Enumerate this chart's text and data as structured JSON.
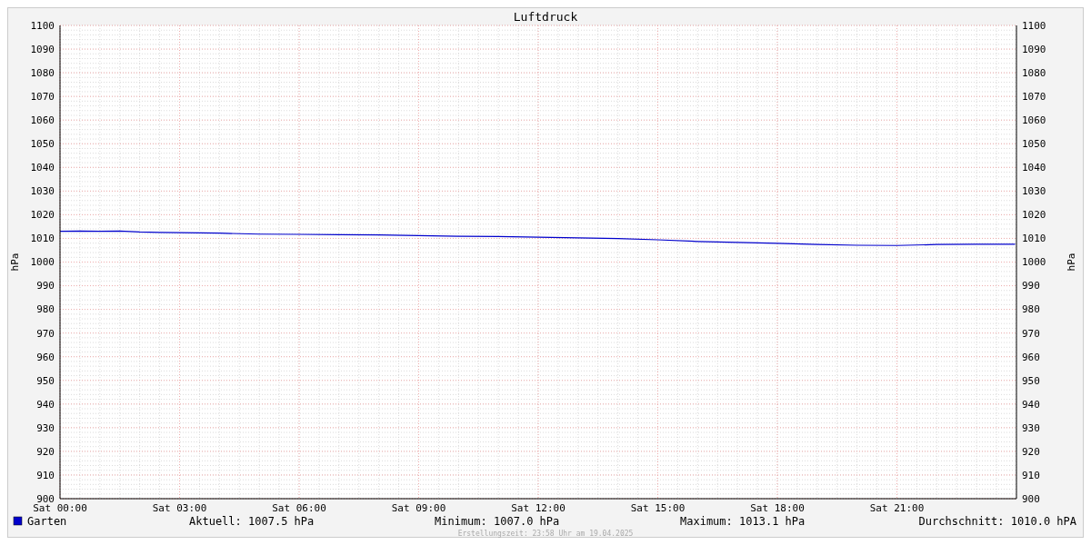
{
  "chart_data": {
    "type": "line",
    "title": "Luftdruck",
    "ylabel": "hPa",
    "y2label": "hPa",
    "x": [
      "2025-04-19T00:00",
      "2025-04-19T00:30",
      "2025-04-19T01:00",
      "2025-04-19T01:30",
      "2025-04-19T02:00",
      "2025-04-19T02:30",
      "2025-04-19T03:00",
      "2025-04-19T04:00",
      "2025-04-19T05:00",
      "2025-04-19T06:00",
      "2025-04-19T07:00",
      "2025-04-19T08:00",
      "2025-04-19T09:00",
      "2025-04-19T10:00",
      "2025-04-19T11:00",
      "2025-04-19T12:00",
      "2025-04-19T13:00",
      "2025-04-19T14:00",
      "2025-04-19T15:00",
      "2025-04-19T16:00",
      "2025-04-19T17:00",
      "2025-04-19T18:00",
      "2025-04-19T19:00",
      "2025-04-19T20:00",
      "2025-04-19T21:00",
      "2025-04-19T22:00",
      "2025-04-19T23:00",
      "2025-04-19T23:58"
    ],
    "series": [
      {
        "name": "Garten",
        "color": "#0000cc",
        "values": [
          1013.0,
          1013.1,
          1013.0,
          1013.1,
          1012.7,
          1012.5,
          1012.4,
          1012.2,
          1011.8,
          1011.7,
          1011.6,
          1011.5,
          1011.2,
          1010.9,
          1010.8,
          1010.5,
          1010.2,
          1009.9,
          1009.4,
          1008.7,
          1008.3,
          1007.9,
          1007.4,
          1007.1,
          1007.0,
          1007.4,
          1007.5,
          1007.5
        ]
      }
    ],
    "xlim": [
      "2025-04-19T00:00",
      "2025-04-20T00:00"
    ],
    "xticks": [
      {
        "value": "2025-04-19T00:00",
        "label": "Sat 00:00"
      },
      {
        "value": "2025-04-19T03:00",
        "label": "Sat 03:00"
      },
      {
        "value": "2025-04-19T06:00",
        "label": "Sat 06:00"
      },
      {
        "value": "2025-04-19T09:00",
        "label": "Sat 09:00"
      },
      {
        "value": "2025-04-19T12:00",
        "label": "Sat 12:00"
      },
      {
        "value": "2025-04-19T15:00",
        "label": "Sat 15:00"
      },
      {
        "value": "2025-04-19T18:00",
        "label": "Sat 18:00"
      },
      {
        "value": "2025-04-19T21:00",
        "label": "Sat 21:00"
      }
    ],
    "ylim": [
      900,
      1100
    ],
    "yticks": [
      900,
      910,
      920,
      930,
      940,
      950,
      960,
      970,
      980,
      990,
      1000,
      1010,
      1020,
      1030,
      1040,
      1050,
      1060,
      1070,
      1080,
      1090,
      1100
    ],
    "y2lim": [
      900,
      1100
    ],
    "y2ticks": [
      900,
      910,
      920,
      930,
      940,
      950,
      960,
      970,
      980,
      990,
      1000,
      1010,
      1020,
      1030,
      1040,
      1050,
      1060,
      1070,
      1080,
      1090,
      1100
    ],
    "grid": true,
    "legend": "bottom left",
    "line_style": "solid",
    "annotations": [
      "Aktuell: 1007.5 hPa",
      "Minimum: 1007.0 hPa",
      "Maximum: 1013.1 hPa",
      "Durchschnitt: 1010.0 hPA",
      "Erstellungszeit: 23:58 Uhr am 19.04.2025"
    ]
  }
}
